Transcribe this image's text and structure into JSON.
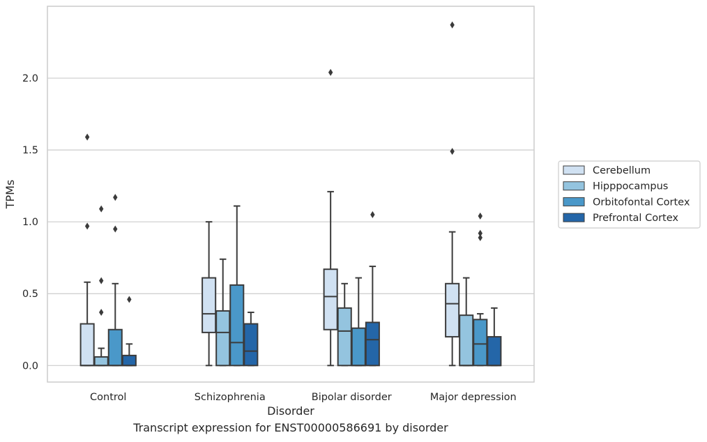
{
  "caption": "Transcript expression for ENST00000586691 by disorder",
  "chart_data": {
    "type": "box",
    "xlabel": "Disorder",
    "ylabel": "TPMs",
    "ylim": [
      -0.115,
      2.5
    ],
    "yticks": [
      0.0,
      0.5,
      1.0,
      1.5,
      2.0
    ],
    "ytick_labels": [
      "0.0",
      "0.5",
      "1.0",
      "1.5",
      "2.0"
    ],
    "grid": "horizontal",
    "legend_position": "right",
    "categories": [
      "Control",
      "Schizophrenia",
      "Bipolar disorder",
      "Major depression"
    ],
    "series": [
      {
        "name": "Cerebellum",
        "color": "#d0e1f2",
        "boxes": [
          {
            "whislo": 0.0,
            "q1": 0.0,
            "med": 0.0,
            "q3": 0.29,
            "whishi": 0.58,
            "fliers": [
              0.97,
              1.59
            ]
          },
          {
            "whislo": 0.0,
            "q1": 0.23,
            "med": 0.36,
            "q3": 0.61,
            "whishi": 1.0,
            "fliers": []
          },
          {
            "whislo": 0.0,
            "q1": 0.25,
            "med": 0.48,
            "q3": 0.67,
            "whishi": 1.21,
            "fliers": [
              2.04
            ]
          },
          {
            "whislo": 0.0,
            "q1": 0.2,
            "med": 0.43,
            "q3": 0.57,
            "whishi": 0.93,
            "fliers": [
              1.49,
              2.37
            ]
          }
        ]
      },
      {
        "name": "Hipppocampus",
        "color": "#94c4df",
        "boxes": [
          {
            "whislo": 0.0,
            "q1": 0.0,
            "med": 0.0,
            "q3": 0.06,
            "whishi": 0.12,
            "fliers": [
              0.37,
              0.59,
              1.09
            ]
          },
          {
            "whislo": 0.0,
            "q1": 0.0,
            "med": 0.23,
            "q3": 0.38,
            "whishi": 0.74,
            "fliers": []
          },
          {
            "whislo": 0.0,
            "q1": 0.0,
            "med": 0.24,
            "q3": 0.4,
            "whishi": 0.57,
            "fliers": []
          },
          {
            "whislo": 0.0,
            "q1": 0.0,
            "med": 0.0,
            "q3": 0.35,
            "whishi": 0.61,
            "fliers": []
          }
        ]
      },
      {
        "name": "Orbitofontal Cortex",
        "color": "#4a98c9",
        "boxes": [
          {
            "whislo": 0.0,
            "q1": 0.0,
            "med": 0.0,
            "q3": 0.25,
            "whishi": 0.57,
            "fliers": [
              0.95,
              1.17
            ]
          },
          {
            "whislo": 0.0,
            "q1": 0.0,
            "med": 0.16,
            "q3": 0.56,
            "whishi": 1.11,
            "fliers": []
          },
          {
            "whislo": 0.0,
            "q1": 0.0,
            "med": 0.0,
            "q3": 0.26,
            "whishi": 0.61,
            "fliers": []
          },
          {
            "whislo": 0.0,
            "q1": 0.0,
            "med": 0.15,
            "q3": 0.32,
            "whishi": 0.36,
            "fliers": [
              0.89,
              0.92,
              1.04
            ]
          }
        ]
      },
      {
        "name": "Prefrontal Cortex",
        "color": "#2466a8",
        "boxes": [
          {
            "whislo": 0.0,
            "q1": 0.0,
            "med": 0.0,
            "q3": 0.07,
            "whishi": 0.15,
            "fliers": [
              0.46
            ]
          },
          {
            "whislo": 0.0,
            "q1": 0.0,
            "med": 0.1,
            "q3": 0.29,
            "whishi": 0.37,
            "fliers": []
          },
          {
            "whislo": 0.0,
            "q1": 0.0,
            "med": 0.18,
            "q3": 0.3,
            "whishi": 0.69,
            "fliers": [
              1.05
            ]
          },
          {
            "whislo": 0.0,
            "q1": 0.0,
            "med": 0.0,
            "q3": 0.2,
            "whishi": 0.4,
            "fliers": []
          }
        ]
      }
    ]
  }
}
